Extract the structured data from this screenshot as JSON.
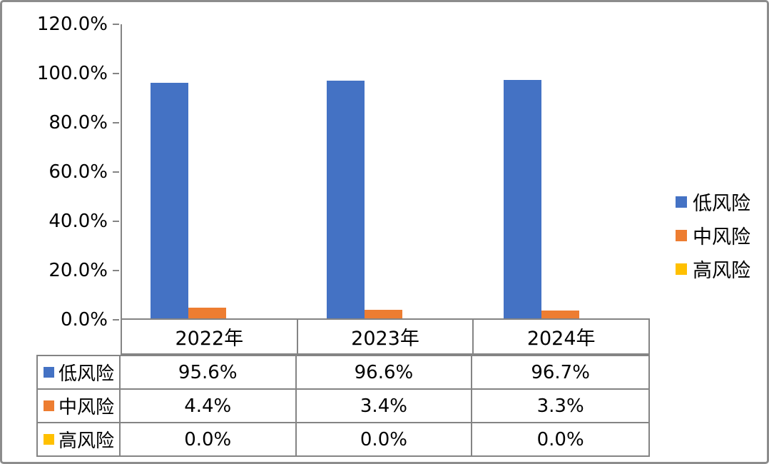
{
  "frame": {
    "background": "#ffffff",
    "border_color": "#8c8c8c",
    "axis_color": "#848484",
    "text_color": "#000000"
  },
  "chart_data": {
    "type": "bar",
    "title": "",
    "xlabel": "",
    "ylabel": "",
    "categories": [
      "2022年",
      "2023年",
      "2024年"
    ],
    "series": [
      {
        "key": "low-risk",
        "name": "低风险",
        "color": "#4472C4",
        "values": [
          95.6,
          96.6,
          96.7
        ],
        "display": [
          "95.6%",
          "96.6%",
          "96.7%"
        ]
      },
      {
        "key": "mid-risk",
        "name": "中风险",
        "color": "#ED7D31",
        "values": [
          4.4,
          3.4,
          3.3
        ],
        "display": [
          "4.4%",
          "3.4%",
          "3.3%"
        ]
      },
      {
        "key": "high-risk",
        "name": "高风险",
        "color": "#FFC000",
        "values": [
          0.0,
          0.0,
          0.0
        ],
        "display": [
          "0.0%",
          "0.0%",
          "0.0%"
        ]
      }
    ],
    "y_axis": {
      "min": 0,
      "max": 120,
      "step": 20,
      "tick_labels_top_to_bottom": [
        "120.0%",
        "100.0%",
        "80.0%",
        "60.0%",
        "40.0%",
        "20.0%",
        "0.0%"
      ]
    },
    "legend": {
      "position": "right",
      "entries": [
        "低风险",
        "中风险",
        "高风险"
      ]
    },
    "grid": false,
    "data_table_shown": true
  }
}
